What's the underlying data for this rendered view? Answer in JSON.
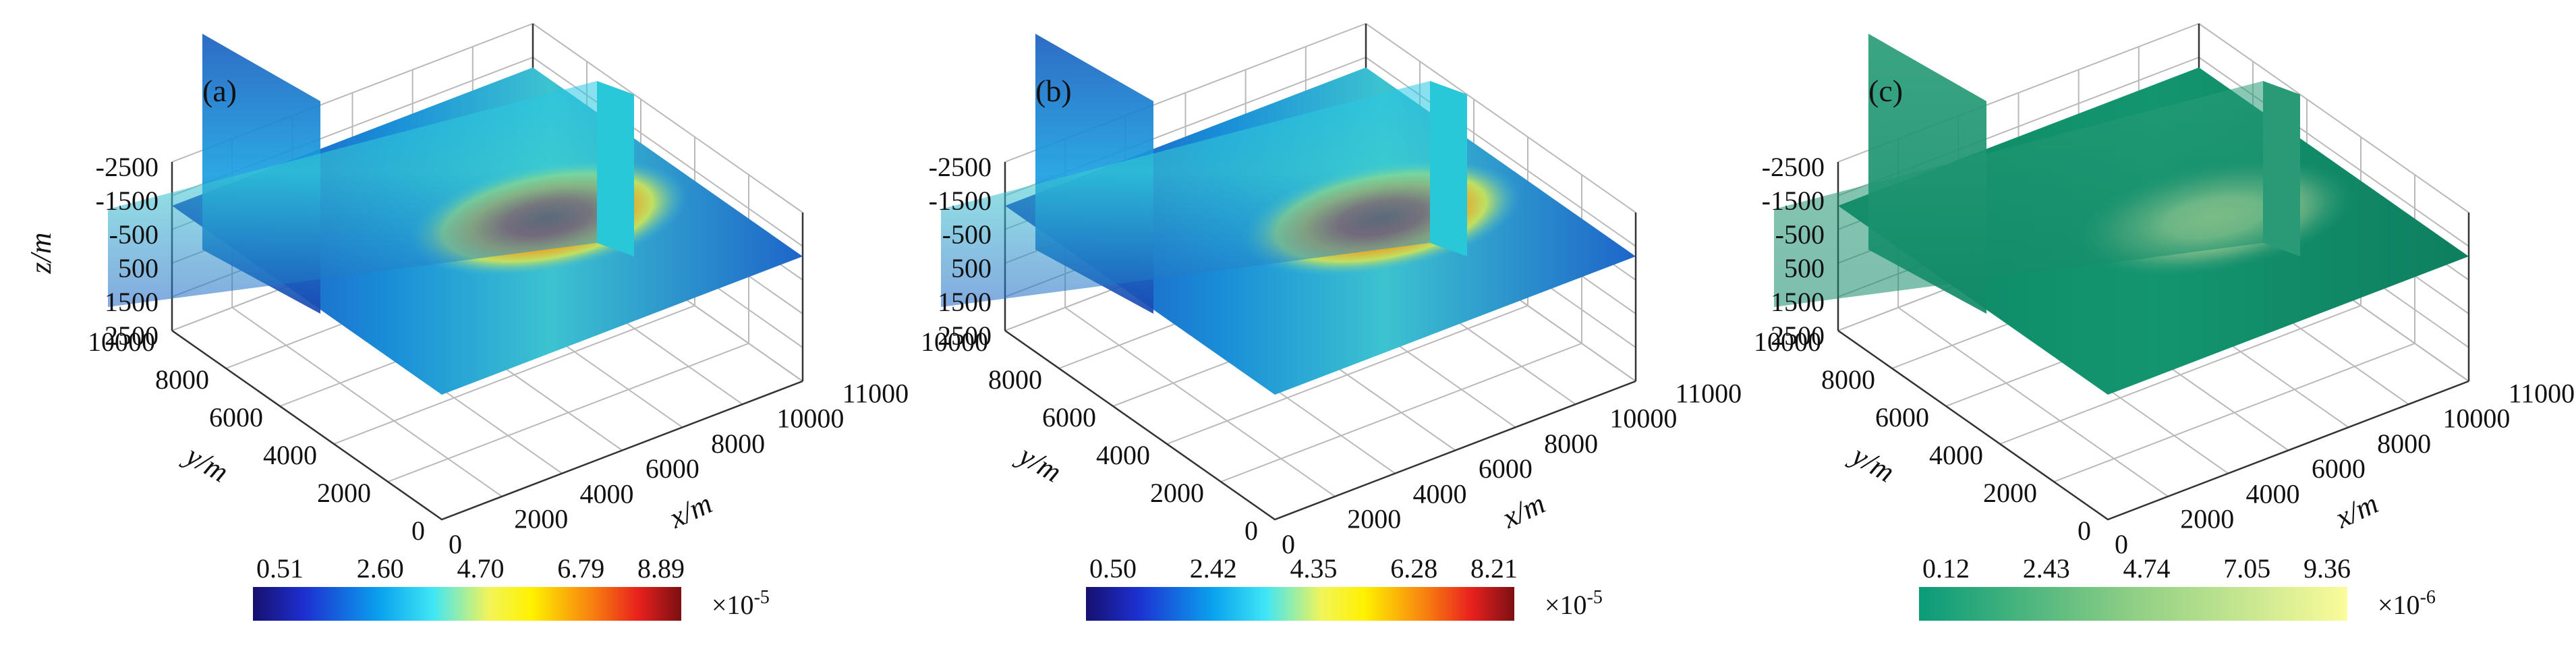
{
  "chart_data": [
    {
      "panel_label": "(a)",
      "type": "heatmap",
      "xlabel": "x/m",
      "ylabel": "y/m",
      "zlabel": "z/m",
      "x_ticks": [
        "0",
        "2000",
        "4000",
        "6000",
        "8000",
        "10000",
        "11000"
      ],
      "y_ticks": [
        "0",
        "2000",
        "4000",
        "6000",
        "8000",
        "10000"
      ],
      "z_ticks": [
        "-2500",
        "-1500",
        "-500",
        "500",
        "1500",
        "2500"
      ],
      "colorbar": {
        "ticks": [
          "0.51",
          "2.60",
          "4.70",
          "6.79",
          "8.89"
        ],
        "multiplier": "×10",
        "exponent": "-5",
        "colormap": "jet",
        "range": [
          0.51,
          8.89
        ]
      }
    },
    {
      "panel_label": "(b)",
      "type": "heatmap",
      "xlabel": "x/m",
      "ylabel": "y/m",
      "zlabel": "",
      "x_ticks": [
        "0",
        "2000",
        "4000",
        "6000",
        "8000",
        "10000",
        "11000"
      ],
      "y_ticks": [
        "0",
        "2000",
        "4000",
        "6000",
        "8000",
        "10000"
      ],
      "z_ticks": [
        "-2500",
        "-1500",
        "-500",
        "500",
        "1500",
        "2500"
      ],
      "colorbar": {
        "ticks": [
          "0.50",
          "2.42",
          "4.35",
          "6.28",
          "8.21"
        ],
        "multiplier": "×10",
        "exponent": "-5",
        "colormap": "jet",
        "range": [
          0.5,
          8.21
        ]
      }
    },
    {
      "panel_label": "(c)",
      "type": "heatmap",
      "xlabel": "x/m",
      "ylabel": "y/m",
      "zlabel": "",
      "x_ticks": [
        "0",
        "2000",
        "4000",
        "6000",
        "8000",
        "10000",
        "11000"
      ],
      "y_ticks": [
        "0",
        "2000",
        "4000",
        "6000",
        "8000",
        "10000"
      ],
      "z_ticks": [
        "-2500",
        "-1500",
        "-500",
        "500",
        "1500",
        "2500"
      ],
      "colorbar": {
        "ticks": [
          "0.12",
          "2.43",
          "4.74",
          "7.05",
          "9.36"
        ],
        "multiplier": "×10",
        "exponent": "-6",
        "colormap": "summer",
        "range": [
          0.12,
          9.36
        ]
      }
    }
  ]
}
